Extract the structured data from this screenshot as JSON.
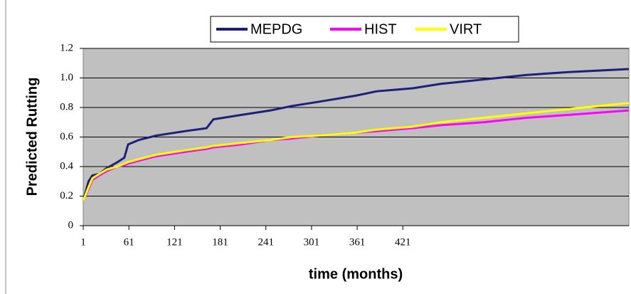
{
  "chart_data": {
    "type": "line",
    "y_label": "Predicted Rutting",
    "x_label": "time (months)",
    "x": [
      1,
      8,
      13,
      22,
      32,
      46,
      55,
      60,
      74,
      97,
      135,
      163,
      172,
      209,
      247,
      275,
      312,
      359,
      387,
      434,
      471,
      527,
      583,
      639,
      718
    ],
    "series": [
      {
        "name": "MEPDG",
        "color": "#1f1f7a",
        "values": [
          0.17,
          0.3,
          0.34,
          0.35,
          0.39,
          0.43,
          0.46,
          0.55,
          0.58,
          0.61,
          0.64,
          0.66,
          0.72,
          0.75,
          0.78,
          0.81,
          0.84,
          0.88,
          0.91,
          0.93,
          0.96,
          0.99,
          1.02,
          1.04,
          1.06
        ]
      },
      {
        "name": "HIST",
        "color": "#ff00ff",
        "values": [
          0.17,
          0.25,
          0.31,
          0.34,
          0.37,
          0.4,
          0.41,
          0.42,
          0.44,
          0.47,
          0.5,
          0.52,
          0.53,
          0.55,
          0.58,
          0.59,
          0.61,
          0.63,
          0.64,
          0.66,
          0.68,
          0.7,
          0.73,
          0.75,
          0.78
        ]
      },
      {
        "name": "VIRT",
        "color": "#ffff00",
        "values": [
          0.17,
          0.26,
          0.32,
          0.35,
          0.38,
          0.4,
          0.42,
          0.43,
          0.45,
          0.48,
          0.51,
          0.53,
          0.54,
          0.56,
          0.58,
          0.6,
          0.61,
          0.63,
          0.65,
          0.67,
          0.7,
          0.73,
          0.76,
          0.79,
          0.83
        ]
      }
    ],
    "xlim": [
      1,
      718
    ],
    "xticks": [
      1,
      61,
      121,
      181,
      241,
      301,
      361,
      421
    ],
    "ylim": [
      0,
      1.2
    ],
    "yticks": [
      0,
      0.2,
      0.4,
      0.6,
      0.8,
      {
        "value": 1,
        "label": "1.0"
      },
      1.2
    ],
    "grid": true,
    "plot_background": "#c0c0c0",
    "legend_position": "top"
  }
}
